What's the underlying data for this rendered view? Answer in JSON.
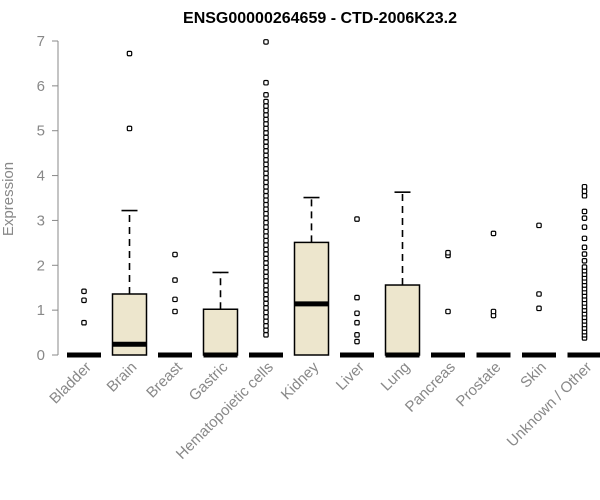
{
  "chart_data": {
    "type": "box",
    "title": "ENSG00000264659 - CTD-2006K23.2",
    "xlabel": "",
    "ylabel": "Expression",
    "ylim": [
      0,
      7
    ],
    "yticks": [
      "0",
      "1",
      "2",
      "3",
      "4",
      "5",
      "6",
      "7"
    ],
    "grid": false,
    "box_fill": "#ede6cd",
    "categories": [
      "Bladder",
      "Brain",
      "Breast",
      "Gastric",
      "Hematopoietic cells",
      "Kidney",
      "Liver",
      "Lung",
      "Pancreas",
      "Prostate",
      "Skin",
      "Unknown / Other"
    ],
    "boxes": [
      {
        "q1": 0,
        "median": 0,
        "q3": 0,
        "whisker_low": 0,
        "whisker_high": 0,
        "outliers": [
          0.72,
          1.22,
          1.42
        ]
      },
      {
        "q1": 0,
        "median": 0.24,
        "q3": 1.36,
        "whisker_low": 0,
        "whisker_high": 3.22,
        "outliers": [
          5.05,
          6.72
        ]
      },
      {
        "q1": 0,
        "median": 0,
        "q3": 0,
        "whisker_low": 0,
        "whisker_high": 0,
        "outliers": [
          0.97,
          1.24,
          1.67,
          2.24
        ]
      },
      {
        "q1": 0,
        "median": 0,
        "q3": 1.02,
        "whisker_low": 0,
        "whisker_high": 1.84,
        "outliers": []
      },
      {
        "q1": 0,
        "median": 0,
        "q3": 0,
        "whisker_low": 0,
        "whisker_high": 0,
        "outliers": [
          0.45,
          0.55,
          0.65,
          0.75,
          0.85,
          0.95,
          1.05,
          1.15,
          1.25,
          1.35,
          1.45,
          1.55,
          1.65,
          1.75,
          1.85,
          1.95,
          2.05,
          2.15,
          2.25,
          2.35,
          2.45,
          2.55,
          2.65,
          2.75,
          2.85,
          2.95,
          3.05,
          3.15,
          3.25,
          3.35,
          3.45,
          3.55,
          3.65,
          3.75,
          3.85,
          3.95,
          4.05,
          4.15,
          4.25,
          4.35,
          4.45,
          4.55,
          4.65,
          4.75,
          4.85,
          4.95,
          5.05,
          5.15,
          5.25,
          5.35,
          5.45,
          5.55,
          5.65,
          5.8,
          6.07,
          6.98
        ]
      },
      {
        "q1": 0,
        "median": 1.14,
        "q3": 2.51,
        "whisker_low": 0,
        "whisker_high": 3.51,
        "outliers": []
      },
      {
        "q1": 0,
        "median": 0,
        "q3": 0,
        "whisker_low": 0,
        "whisker_high": 0,
        "outliers": [
          0.3,
          0.45,
          0.72,
          0.93,
          1.28,
          3.03
        ]
      },
      {
        "q1": 0,
        "median": 0,
        "q3": 1.56,
        "whisker_low": 0,
        "whisker_high": 3.63,
        "outliers": []
      },
      {
        "q1": 0,
        "median": 0,
        "q3": 0,
        "whisker_low": 0,
        "whisker_high": 0,
        "outliers": [
          0.97,
          2.22,
          2.28
        ]
      },
      {
        "q1": 0,
        "median": 0,
        "q3": 0,
        "whisker_low": 0,
        "whisker_high": 0,
        "outliers": [
          0.88,
          0.97,
          2.71
        ]
      },
      {
        "q1": 0,
        "median": 0,
        "q3": 0,
        "whisker_low": 0,
        "whisker_high": 0,
        "outliers": [
          1.04,
          1.36,
          2.89
        ]
      },
      {
        "q1": 0,
        "median": 0,
        "q3": 0,
        "whisker_low": 0,
        "whisker_high": 0,
        "outliers": [
          0.38,
          0.45,
          0.52,
          0.6,
          0.68,
          0.76,
          0.84,
          0.92,
          1.0,
          1.08,
          1.16,
          1.24,
          1.32,
          1.4,
          1.48,
          1.56,
          1.64,
          1.72,
          1.8,
          1.88,
          1.96,
          2.1,
          2.25,
          2.4,
          2.6,
          2.85,
          3.05,
          3.2,
          3.55,
          3.65,
          3.75
        ]
      }
    ]
  }
}
